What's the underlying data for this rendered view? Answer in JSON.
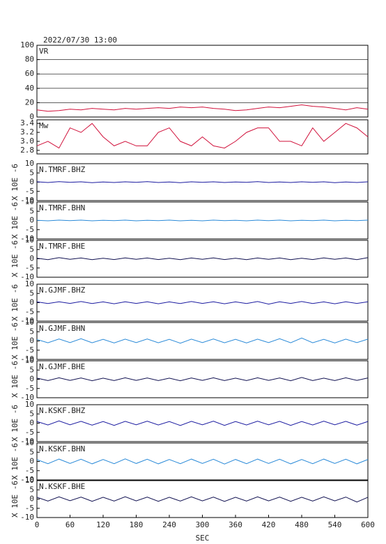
{
  "chart_data": [
    {
      "type": "line",
      "title": "2022/07/30 13:00",
      "xlim": [
        0,
        600
      ],
      "ylim": [
        0,
        100
      ],
      "yticks": [
        0,
        20,
        40,
        60,
        80,
        100
      ],
      "grid": true,
      "x": [
        0,
        20,
        40,
        60,
        80,
        100,
        120,
        140,
        160,
        180,
        200,
        220,
        240,
        260,
        280,
        300,
        320,
        340,
        360,
        380,
        400,
        420,
        440,
        460,
        480,
        500,
        520,
        540,
        560,
        580,
        600
      ],
      "series": [
        {
          "name": "VR",
          "color": "#d0103a",
          "values": [
            10,
            8,
            9,
            11,
            10,
            12,
            11,
            10,
            12,
            11,
            12,
            13,
            12,
            14,
            13,
            14,
            12,
            11,
            9,
            10,
            12,
            14,
            13,
            15,
            17,
            15,
            14,
            12,
            10,
            13,
            11
          ]
        }
      ]
    },
    {
      "type": "line",
      "xlim": [
        0,
        600
      ],
      "ylim": [
        2.72,
        3.48
      ],
      "yticks": [
        2.8,
        {
          "value": 3,
          "label": "3.0"
        },
        3.2,
        3.4
      ],
      "grid": false,
      "x": [
        0,
        20,
        40,
        60,
        80,
        100,
        120,
        140,
        160,
        180,
        200,
        220,
        240,
        260,
        280,
        300,
        320,
        340,
        360,
        380,
        400,
        420,
        440,
        460,
        480,
        500,
        520,
        540,
        560,
        580,
        600
      ],
      "series": [
        {
          "name": "Mw",
          "color": "#d0103a",
          "values": [
            2.9,
            3.0,
            2.85,
            3.3,
            3.2,
            3.4,
            3.1,
            2.9,
            3.0,
            2.9,
            2.9,
            3.2,
            3.3,
            3.0,
            2.9,
            3.1,
            2.9,
            2.85,
            3.0,
            3.2,
            3.3,
            3.3,
            3.0,
            3.0,
            2.9,
            3.3,
            3.0,
            3.2,
            3.4,
            3.3,
            3.1
          ]
        }
      ]
    },
    {
      "type": "line",
      "ylabel": "X 10E -6",
      "xlim": [
        0,
        600
      ],
      "ylim": [
        -10,
        10
      ],
      "yticks": [
        -10,
        -5,
        0,
        5,
        10
      ],
      "grid": false,
      "x": [
        0,
        20,
        40,
        60,
        80,
        100,
        120,
        140,
        160,
        180,
        200,
        220,
        240,
        260,
        280,
        300,
        320,
        340,
        360,
        380,
        400,
        420,
        440,
        460,
        480,
        500,
        520,
        540,
        560,
        580,
        600
      ],
      "series": [
        {
          "name": "N.TMRF.BHZ",
          "color": "#1a1aa0",
          "values": [
            0.2,
            -0.2,
            0.3,
            -0.1,
            0.2,
            -0.3,
            0.1,
            -0.2,
            0.2,
            -0.1,
            0.3,
            -0.2,
            0.1,
            -0.3,
            0.2,
            -0.1,
            0.2,
            -0.2,
            0.1,
            -0.1,
            0.3,
            -0.2,
            0.1,
            -0.2,
            0.2,
            -0.1,
            0.2,
            -0.3,
            0.1,
            -0.2,
            0.2
          ]
        }
      ]
    },
    {
      "type": "line",
      "ylabel": "X 10E -6",
      "xlim": [
        0,
        600
      ],
      "ylim": [
        -10,
        10
      ],
      "yticks": [
        -10,
        -5,
        0,
        5,
        10
      ],
      "grid": false,
      "x": [
        0,
        20,
        40,
        60,
        80,
        100,
        120,
        140,
        160,
        180,
        200,
        220,
        240,
        260,
        280,
        300,
        320,
        340,
        360,
        380,
        400,
        420,
        440,
        460,
        480,
        500,
        520,
        540,
        560,
        580,
        600
      ],
      "series": [
        {
          "name": "N.TMRF.BHN",
          "color": "#2a8ad8",
          "values": [
            0.1,
            -0.2,
            0.2,
            -0.1,
            0.2,
            -0.2,
            0.1,
            -0.1,
            0.2,
            -0.2,
            0.1,
            -0.1,
            0.2,
            -0.2,
            0.1,
            -0.2,
            0.2,
            -0.1,
            0.1,
            -0.2,
            0.2,
            -0.1,
            0.2,
            -0.2,
            0.1,
            -0.1,
            0.2,
            -0.2,
            0.1,
            -0.1,
            0.2
          ]
        }
      ]
    },
    {
      "type": "line",
      "ylabel": "X 10E -6",
      "xlim": [
        0,
        600
      ],
      "ylim": [
        -10,
        10
      ],
      "yticks": [
        -10,
        -5,
        0,
        5,
        10
      ],
      "grid": false,
      "x": [
        0,
        20,
        40,
        60,
        80,
        100,
        120,
        140,
        160,
        180,
        200,
        220,
        240,
        260,
        280,
        300,
        320,
        340,
        360,
        380,
        400,
        420,
        440,
        460,
        480,
        500,
        520,
        540,
        560,
        580,
        600
      ],
      "series": [
        {
          "name": "N.TMRF.BHE",
          "color": "#101050",
          "values": [
            0.3,
            -0.5,
            0.6,
            -0.3,
            0.4,
            -0.5,
            0.3,
            -0.4,
            0.5,
            -0.3,
            0.4,
            -0.4,
            0.3,
            -0.5,
            0.4,
            -0.3,
            0.5,
            -0.4,
            0.3,
            -0.5,
            0.4,
            -0.3,
            0.4,
            -0.5,
            0.3,
            -0.4,
            0.5,
            -0.3,
            0.4,
            -0.5,
            0.6
          ]
        }
      ]
    },
    {
      "type": "line",
      "ylabel": "X 10E -6",
      "xlim": [
        0,
        600
      ],
      "ylim": [
        -10,
        10
      ],
      "yticks": [
        -10,
        -5,
        0,
        5,
        10
      ],
      "grid": false,
      "x": [
        0,
        20,
        40,
        60,
        80,
        100,
        120,
        140,
        160,
        180,
        200,
        220,
        240,
        260,
        280,
        300,
        320,
        340,
        360,
        380,
        400,
        420,
        440,
        460,
        480,
        500,
        520,
        540,
        560,
        580,
        600
      ],
      "series": [
        {
          "name": "N.GJMF.BHZ",
          "color": "#1a1aa0",
          "values": [
            0.4,
            -0.5,
            0.5,
            -0.4,
            0.6,
            -0.5,
            0.4,
            -0.6,
            0.5,
            -0.4,
            0.5,
            -0.6,
            0.4,
            -0.5,
            0.6,
            -0.4,
            0.5,
            -0.6,
            0.4,
            -0.5,
            0.6,
            -0.8,
            0.5,
            -0.4,
            0.6,
            -0.5,
            0.4,
            -0.6,
            0.5,
            -0.4,
            0.5
          ]
        }
      ]
    },
    {
      "type": "line",
      "ylabel": "X 10E -6",
      "xlim": [
        0,
        600
      ],
      "ylim": [
        -10,
        10
      ],
      "yticks": [
        -10,
        -5,
        0,
        5,
        10
      ],
      "grid": false,
      "x": [
        0,
        20,
        40,
        60,
        80,
        100,
        120,
        140,
        160,
        180,
        200,
        220,
        240,
        260,
        280,
        300,
        320,
        340,
        360,
        380,
        400,
        420,
        440,
        460,
        480,
        500,
        520,
        540,
        560,
        580,
        600
      ],
      "series": [
        {
          "name": "N.GJMF.BHN",
          "color": "#2a8ad8",
          "values": [
            0.8,
            -1.0,
            1.1,
            -0.9,
            1.2,
            -1.0,
            0.9,
            -1.1,
            1.0,
            -0.9,
            1.1,
            -1.0,
            0.9,
            -1.2,
            1.0,
            -0.9,
            1.1,
            -1.0,
            0.9,
            -1.1,
            1.0,
            -0.9,
            1.2,
            -1.0,
            1.6,
            -1.0,
            0.9,
            -1.1,
            1.0,
            -0.9,
            1.0
          ]
        }
      ]
    },
    {
      "type": "line",
      "ylabel": "X 10E -6",
      "xlim": [
        0,
        600
      ],
      "ylim": [
        -10,
        10
      ],
      "yticks": [
        -10,
        -5,
        0,
        5,
        10
      ],
      "grid": false,
      "x": [
        0,
        20,
        40,
        60,
        80,
        100,
        120,
        140,
        160,
        180,
        200,
        220,
        240,
        260,
        280,
        300,
        320,
        340,
        360,
        380,
        400,
        420,
        440,
        460,
        480,
        500,
        520,
        540,
        560,
        580,
        600
      ],
      "series": [
        {
          "name": "N.GJMF.BHE",
          "color": "#101050",
          "values": [
            0.6,
            -0.7,
            0.8,
            -0.6,
            0.7,
            -0.8,
            0.6,
            -0.7,
            0.8,
            -0.6,
            0.7,
            -0.7,
            0.6,
            -0.8,
            0.7,
            -0.6,
            0.8,
            -0.7,
            0.6,
            -0.7,
            0.8,
            -0.6,
            0.7,
            -0.8,
            1.0,
            -0.7,
            0.6,
            -0.7,
            0.8,
            -0.6,
            0.7
          ]
        }
      ]
    },
    {
      "type": "line",
      "ylabel": "X 10E -6",
      "xlim": [
        0,
        600
      ],
      "ylim": [
        -10,
        10
      ],
      "yticks": [
        -10,
        -5,
        0,
        5,
        10
      ],
      "grid": false,
      "x": [
        0,
        20,
        40,
        60,
        80,
        100,
        120,
        140,
        160,
        180,
        200,
        220,
        240,
        260,
        280,
        300,
        320,
        340,
        360,
        380,
        400,
        420,
        440,
        460,
        480,
        500,
        520,
        540,
        560,
        580,
        600
      ],
      "series": [
        {
          "name": "N.KSKF.BHZ",
          "color": "#1a1aa0",
          "values": [
            0.9,
            -1.0,
            1.2,
            -0.9,
            1.0,
            -1.1,
            0.9,
            -1.2,
            1.0,
            -0.9,
            1.1,
            -1.0,
            0.9,
            -1.3,
            1.0,
            -0.9,
            1.1,
            -1.2,
            0.9,
            -1.0,
            1.1,
            -0.9,
            1.0,
            -1.2,
            0.9,
            -1.0,
            1.1,
            -0.9,
            1.0,
            -1.1,
            0.9
          ]
        }
      ]
    },
    {
      "type": "line",
      "ylabel": "X 10E -6",
      "xlim": [
        0,
        600
      ],
      "ylim": [
        -10,
        10
      ],
      "yticks": [
        -10,
        -5,
        0,
        5,
        10
      ],
      "grid": false,
      "x": [
        0,
        20,
        40,
        60,
        80,
        100,
        120,
        140,
        160,
        180,
        200,
        220,
        240,
        260,
        280,
        300,
        320,
        340,
        360,
        380,
        400,
        420,
        440,
        460,
        480,
        500,
        520,
        540,
        560,
        580,
        600
      ],
      "series": [
        {
          "name": "N.KSKF.BHN",
          "color": "#2a8ad8",
          "values": [
            1.0,
            -1.2,
            1.3,
            -1.1,
            1.2,
            -1.3,
            1.1,
            -1.2,
            1.4,
            -1.1,
            1.2,
            -1.3,
            1.1,
            -1.2,
            1.3,
            -1.1,
            1.2,
            -1.4,
            1.1,
            -1.2,
            1.3,
            -1.1,
            1.2,
            -1.3,
            1.1,
            -1.2,
            1.3,
            -1.1,
            1.2,
            -1.3,
            1.1
          ]
        }
      ]
    },
    {
      "type": "line",
      "ylabel": "X 10E -6",
      "xlim": [
        0,
        600
      ],
      "ylim": [
        -10,
        10
      ],
      "yticks": [
        -10,
        -5,
        0,
        5,
        10
      ],
      "grid": false,
      "x": [
        0,
        20,
        40,
        60,
        80,
        100,
        120,
        140,
        160,
        180,
        200,
        220,
        240,
        260,
        280,
        300,
        320,
        340,
        360,
        380,
        400,
        420,
        440,
        460,
        480,
        500,
        520,
        540,
        560,
        580,
        600
      ],
      "xticks": [
        0,
        60,
        120,
        180,
        240,
        300,
        360,
        420,
        480,
        540,
        600
      ],
      "xlabel": "SEC",
      "series": [
        {
          "name": "N.KSKF.BHE",
          "color": "#101050",
          "values": [
            1.0,
            -1.1,
            1.2,
            -0.9,
            1.1,
            -1.2,
            1.0,
            -1.1,
            1.3,
            -1.0,
            1.1,
            -1.2,
            1.0,
            -1.1,
            1.2,
            -1.0,
            1.1,
            -1.3,
            1.0,
            -1.1,
            1.2,
            -1.0,
            1.1,
            -1.2,
            1.0,
            -1.1,
            1.2,
            -1.0,
            1.1,
            -1.6,
            1.0
          ]
        }
      ]
    }
  ]
}
